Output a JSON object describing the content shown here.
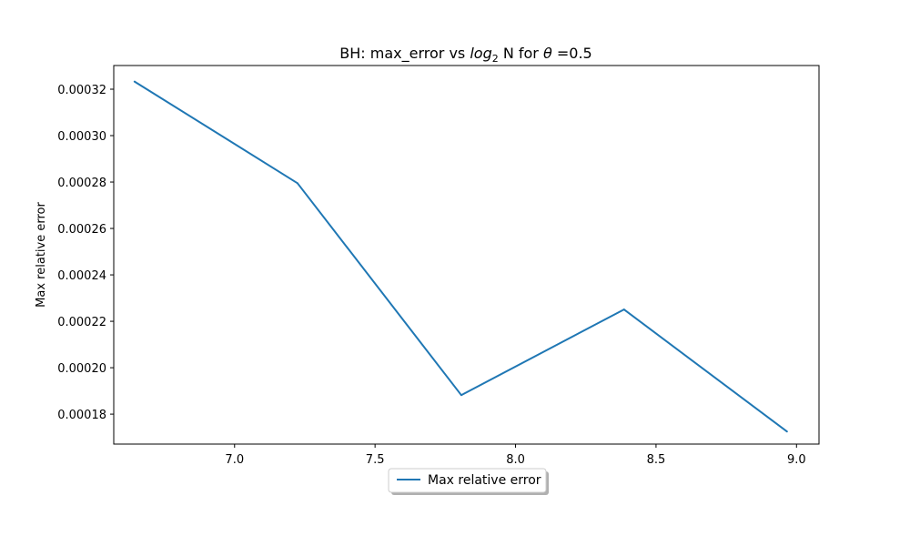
{
  "chart_data": {
    "type": "line",
    "title": {
      "prefix": "BH: max_error vs ",
      "log": "log",
      "log_sub": "2",
      "after_log": " N for ",
      "theta": "θ",
      "suffix": " =0.5"
    },
    "xlabel": "",
    "ylabel": "Max relative error",
    "xlim": [
      6.57,
      9.08
    ],
    "ylim": [
      0.0001671,
      0.0003302
    ],
    "xticks": [
      7.0,
      7.5,
      8.0,
      8.5,
      9.0
    ],
    "xtick_labels": [
      "7.0",
      "7.5",
      "8.0",
      "8.5",
      "9.0"
    ],
    "yticks": [
      0.00018,
      0.0002,
      0.00022,
      0.00024,
      0.00026,
      0.00028,
      0.0003,
      0.00032
    ],
    "ytick_labels": [
      "0.00018",
      "0.00020",
      "0.00022",
      "0.00024",
      "0.00026",
      "0.00028",
      "0.00030",
      "0.00032"
    ],
    "grid": false,
    "legend_position": "bottom-center",
    "series": [
      {
        "name": "Max relative error",
        "color": "#1f77b4",
        "x": [
          6.644,
          7.224,
          7.807,
          8.386,
          8.966
        ],
        "y": [
          0.0003233,
          0.0002795,
          0.0001882,
          0.0002251,
          0.0001725
        ]
      }
    ]
  }
}
